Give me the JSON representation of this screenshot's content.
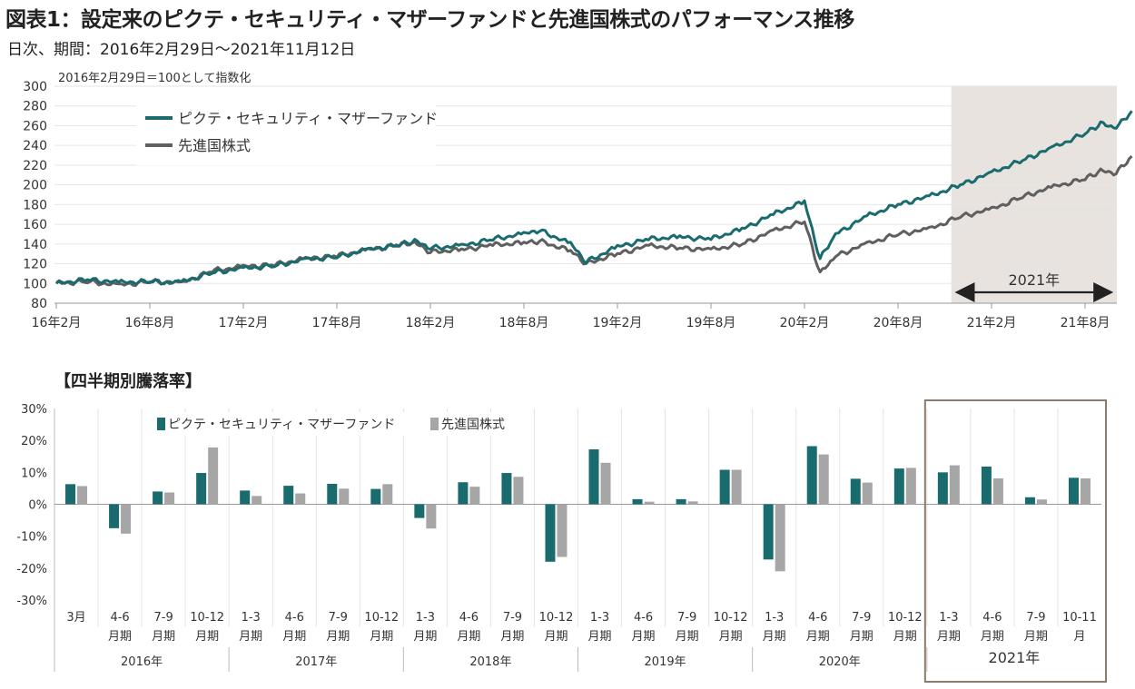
{
  "page": {
    "title": "図表1：設定来のピクテ・セキュリティ・マザーファンドと先進国株式のパフォーマンス推移",
    "subtitle": "日次、期間：2016年2月29日～2021年11月12日"
  },
  "colors": {
    "fund": "#1a6b6e",
    "world": "#5f5f5f",
    "world_bar": "#a6a6a6",
    "shade": "#e8e3df",
    "box": "#8a7b6d"
  },
  "chart_data": [
    {
      "type": "line",
      "note": "2016年2月29日＝100として指数化",
      "ylim": [
        80,
        300
      ],
      "yticks": [
        80,
        100,
        120,
        140,
        160,
        180,
        200,
        220,
        240,
        260,
        280,
        300
      ],
      "xticks": [
        "16年2月",
        "16年8月",
        "17年2月",
        "17年8月",
        "18年2月",
        "18年8月",
        "19年2月",
        "19年8月",
        "20年2月",
        "20年8月",
        "21年2月",
        "21年8月"
      ],
      "highlight_label": "2021年",
      "series": [
        {
          "name": "ピクテ・セキュリティ・マザーファンド",
          "points": [
            [
              "2016-02",
              100
            ],
            [
              "2016-04",
              104
            ],
            [
              "2016-06",
              101
            ],
            [
              "2016-08",
              102
            ],
            [
              "2016-10",
              101
            ],
            [
              "2016-12",
              111
            ],
            [
              "2017-02",
              115
            ],
            [
              "2017-04",
              118
            ],
            [
              "2017-06",
              124
            ],
            [
              "2017-08",
              127
            ],
            [
              "2017-10",
              134
            ],
            [
              "2017-12",
              139
            ],
            [
              "2018-01",
              143
            ],
            [
              "2018-02",
              136
            ],
            [
              "2018-04",
              138
            ],
            [
              "2018-06",
              145
            ],
            [
              "2018-08",
              150
            ],
            [
              "2018-09",
              154
            ],
            [
              "2018-11",
              140
            ],
            [
              "2018-12",
              122
            ],
            [
              "2019-02",
              137
            ],
            [
              "2019-04",
              145
            ],
            [
              "2019-06",
              147
            ],
            [
              "2019-08",
              145
            ],
            [
              "2019-10",
              155
            ],
            [
              "2019-12",
              170
            ],
            [
              "2020-02",
              183
            ],
            [
              "2020-03",
              125
            ],
            [
              "2020-04",
              150
            ],
            [
              "2020-06",
              168
            ],
            [
              "2020-08",
              180
            ],
            [
              "2020-10",
              188
            ],
            [
              "2020-12",
              200
            ],
            [
              "2021-02",
              212
            ],
            [
              "2021-04",
              225
            ],
            [
              "2021-06",
              238
            ],
            [
              "2021-08",
              252
            ],
            [
              "2021-09",
              262
            ],
            [
              "2021-10",
              258
            ],
            [
              "2021-11",
              275
            ]
          ]
        },
        {
          "name": "先進国株式",
          "points": [
            [
              "2016-02",
              100
            ],
            [
              "2016-04",
              102
            ],
            [
              "2016-06",
              98
            ],
            [
              "2016-08",
              102
            ],
            [
              "2016-10",
              100
            ],
            [
              "2016-12",
              113
            ],
            [
              "2017-02",
              117
            ],
            [
              "2017-04",
              119
            ],
            [
              "2017-06",
              125
            ],
            [
              "2017-08",
              128
            ],
            [
              "2017-10",
              134
            ],
            [
              "2017-12",
              139
            ],
            [
              "2018-01",
              141
            ],
            [
              "2018-02",
              132
            ],
            [
              "2018-04",
              134
            ],
            [
              "2018-06",
              139
            ],
            [
              "2018-08",
              141
            ],
            [
              "2018-09",
              143
            ],
            [
              "2018-11",
              133
            ],
            [
              "2018-12",
              120
            ],
            [
              "2019-02",
              130
            ],
            [
              "2019-04",
              138
            ],
            [
              "2019-06",
              136
            ],
            [
              "2019-08",
              134
            ],
            [
              "2019-10",
              140
            ],
            [
              "2019-12",
              153
            ],
            [
              "2020-02",
              163
            ],
            [
              "2020-03",
              110
            ],
            [
              "2020-04",
              128
            ],
            [
              "2020-06",
              140
            ],
            [
              "2020-08",
              150
            ],
            [
              "2020-10",
              155
            ],
            [
              "2020-12",
              168
            ],
            [
              "2021-02",
              175
            ],
            [
              "2021-04",
              188
            ],
            [
              "2021-06",
              198
            ],
            [
              "2021-08",
              206
            ],
            [
              "2021-09",
              214
            ],
            [
              "2021-10",
              212
            ],
            [
              "2021-11",
              229
            ]
          ]
        }
      ]
    },
    {
      "type": "bar",
      "title": "【四半期別騰落率】",
      "ylim": [
        -30,
        30
      ],
      "yticks": [
        "-30%",
        "-20%",
        "-10%",
        "0%",
        "10%",
        "20%",
        "30%"
      ],
      "categories": [
        {
          "line1": "3月",
          "line2": ""
        },
        {
          "line1": "4-6",
          "line2": "月期"
        },
        {
          "line1": "7-9",
          "line2": "月期"
        },
        {
          "line1": "10-12",
          "line2": "月期"
        },
        {
          "line1": "1-3",
          "line2": "月期"
        },
        {
          "line1": "4-6",
          "line2": "月期"
        },
        {
          "line1": "7-9",
          "line2": "月期"
        },
        {
          "line1": "10-12",
          "line2": "月期"
        },
        {
          "line1": "1-3",
          "line2": "月期"
        },
        {
          "line1": "4-6",
          "line2": "月期"
        },
        {
          "line1": "7-9",
          "line2": "月期"
        },
        {
          "line1": "10-12",
          "line2": "月期"
        },
        {
          "line1": "1-3",
          "line2": "月期"
        },
        {
          "line1": "4-6",
          "line2": "月期"
        },
        {
          "line1": "7-9",
          "line2": "月期"
        },
        {
          "line1": "10-12",
          "line2": "月期"
        },
        {
          "line1": "1-3",
          "line2": "月期"
        },
        {
          "line1": "4-6",
          "line2": "月期"
        },
        {
          "line1": "7-9",
          "line2": "月期"
        },
        {
          "line1": "10-12",
          "line2": "月期"
        },
        {
          "line1": "1-3",
          "line2": "月期"
        },
        {
          "line1": "4-6",
          "line2": "月期"
        },
        {
          "line1": "7-9",
          "line2": "月期"
        },
        {
          "line1": "10-11",
          "line2": "月"
        }
      ],
      "years": [
        {
          "label": "2016年",
          "start": 0,
          "count": 4
        },
        {
          "label": "2017年",
          "start": 4,
          "count": 4
        },
        {
          "label": "2018年",
          "start": 8,
          "count": 4
        },
        {
          "label": "2019年",
          "start": 12,
          "count": 4
        },
        {
          "label": "2020年",
          "start": 16,
          "count": 4
        },
        {
          "label": "2021年",
          "start": 20,
          "count": 4
        }
      ],
      "series": [
        {
          "name": "ピクテ・セキュリティ・マザーファンド",
          "values": [
            6.3,
            -7.5,
            4.0,
            9.8,
            4.3,
            5.8,
            6.4,
            4.8,
            -4.3,
            6.9,
            9.8,
            -18.0,
            17.2,
            1.6,
            1.6,
            10.8,
            -17.3,
            18.2,
            8.0,
            11.2,
            10.0,
            11.8,
            2.2,
            8.3
          ]
        },
        {
          "name": "先進国株式",
          "values": [
            5.7,
            -9.2,
            3.7,
            17.8,
            2.6,
            3.4,
            4.9,
            6.3,
            -7.6,
            5.5,
            8.6,
            -16.5,
            13.0,
            0.8,
            0.9,
            10.8,
            -21.0,
            15.6,
            6.8,
            11.4,
            12.2,
            8.1,
            1.5,
            8.1
          ]
        }
      ]
    }
  ]
}
